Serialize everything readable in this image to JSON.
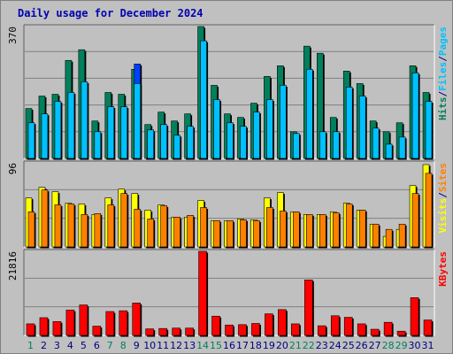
{
  "title": "Daily usage for December 2024",
  "colors": {
    "background": "#c0c0c0",
    "plot": "#c0c0c0",
    "grid": "#808080",
    "title": "#0000b0",
    "hits": "#00805c",
    "files": "#00c0ff",
    "pages": "#0040ff",
    "visits": "#ffff00",
    "sites": "#ff8000",
    "kbytes": "#ff0000",
    "weekend_day": "#00805c",
    "weekday": "#000080"
  },
  "chart_data": {
    "type": "bar",
    "categories": [
      "1",
      "2",
      "3",
      "4",
      "5",
      "6",
      "7",
      "8",
      "9",
      "10",
      "11",
      "12",
      "13",
      "14",
      "15",
      "16",
      "17",
      "18",
      "19",
      "20",
      "21",
      "22",
      "23",
      "24",
      "25",
      "26",
      "27",
      "28",
      "29",
      "30",
      "31"
    ],
    "weekend_days": [
      "1",
      "7",
      "8",
      "14",
      "15",
      "21",
      "22",
      "28",
      "29"
    ],
    "panels": [
      {
        "name": "hits-files-pages",
        "max_label": "370",
        "ylim": [
          0,
          370
        ],
        "axis_label_parts": [
          {
            "text": "Hits",
            "color_key": "hits"
          },
          {
            "text": "/",
            "color_key": "weekday"
          },
          {
            "text": "Files",
            "color_key": "files"
          },
          {
            "text": "/",
            "color_key": "weekday"
          },
          {
            "text": "Pages",
            "color_key": "files"
          }
        ],
        "series": [
          {
            "name": "Hits",
            "color_key": "hits",
            "values": [
              140,
              175,
              180,
              275,
              305,
              105,
              185,
              180,
              250,
              95,
              130,
              105,
              125,
              370,
              205,
              125,
              115,
              155,
              230,
              260,
              75,
              315,
              295,
              115,
              245,
              210,
              105,
              75,
              100,
              260,
              185
            ]
          },
          {
            "name": "Files",
            "color_key": "files",
            "values": [
              100,
              125,
              160,
              185,
              215,
              75,
              145,
              145,
              210,
              80,
              95,
              65,
              90,
              330,
              165,
              100,
              90,
              130,
              165,
              205,
              70,
              250,
              75,
              75,
              200,
              175,
              85,
              40,
              60,
              240,
              160
            ]
          },
          {
            "name": "Pages",
            "color_key": "pages",
            "values": [
              5,
              5,
              5,
              5,
              5,
              5,
              5,
              5,
              265,
              5,
              5,
              5,
              5,
              5,
              5,
              5,
              5,
              5,
              5,
              5,
              5,
              5,
              5,
              5,
              5,
              5,
              5,
              5,
              5,
              5,
              5
            ]
          }
        ]
      },
      {
        "name": "visits-sites",
        "max_label": "96",
        "ylim": [
          0,
          96
        ],
        "axis_label_parts": [
          {
            "text": "Visits",
            "color_key": "visits"
          },
          {
            "text": "/",
            "color_key": "weekday"
          },
          {
            "text": "Sites",
            "color_key": "sites"
          }
        ],
        "series": [
          {
            "name": "Visits",
            "color_key": "visits",
            "values": [
              56,
              68,
              63,
              50,
              49,
              37,
              56,
              66,
              61,
              42,
              48,
              34,
              34,
              53,
              30,
              30,
              32,
              31,
              56,
              62,
              40,
              37,
              37,
              40,
              50,
              42,
              26,
              12,
              20,
              70,
              94
            ]
          },
          {
            "name": "Sites",
            "color_key": "sites",
            "values": [
              40,
              65,
              48,
              49,
              37,
              38,
              48,
              61,
              43,
              32,
              47,
              34,
              36,
              45,
              30,
              30,
              31,
              30,
              45,
              41,
              40,
              37,
              37,
              39,
              49,
              42,
              26,
              20,
              26,
              61,
              84
            ]
          }
        ]
      },
      {
        "name": "kbytes",
        "max_label": "21816",
        "ylim": [
          0,
          21816
        ],
        "axis_label_parts": [
          {
            "text": "KBytes",
            "color_key": "kbytes"
          }
        ],
        "series": [
          {
            "name": "KBytes",
            "color_key": "kbytes",
            "values": [
              3000,
              4600,
              3600,
              6600,
              7900,
              2400,
              6200,
              6400,
              8400,
              1700,
              1800,
              1900,
              1900,
              21816,
              5000,
              2700,
              2800,
              3100,
              5600,
              6700,
              3000,
              14400,
              2500,
              5100,
              4700,
              3000,
              1600,
              3400,
              1100,
              9800,
              4000
            ]
          }
        ]
      }
    ]
  }
}
